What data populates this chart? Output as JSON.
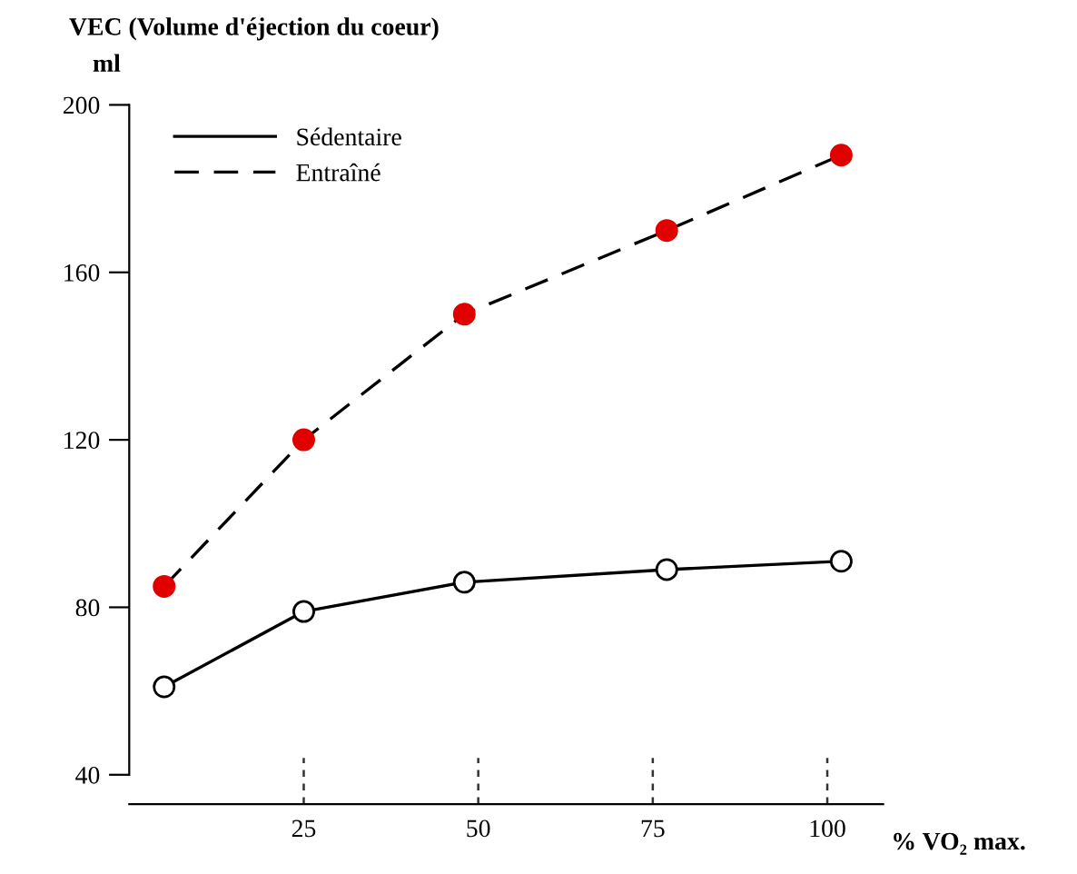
{
  "chart_data": {
    "type": "line",
    "title": "VEC (Volume d'éjection du coeur)",
    "ylabel": "ml",
    "xlabel": "% VO₂ max.",
    "x": [
      5,
      25,
      48,
      77,
      102
    ],
    "series": [
      {
        "name": "Sédentaire",
        "color": "#000000",
        "values": [
          61,
          79,
          86,
          89,
          91
        ],
        "line_style": "solid",
        "marker": "circle"
      },
      {
        "name": "Entraîné",
        "color": "#e00000",
        "values": [
          85,
          120,
          150,
          170,
          188
        ],
        "line_style": "dashed",
        "marker": "circle"
      }
    ],
    "xlim": [
      0,
      108
    ],
    "ylim": [
      33,
      200
    ],
    "xticks": [
      25,
      50,
      75,
      100
    ],
    "yticks": [
      40,
      80,
      120,
      160,
      200
    ],
    "grid": false,
    "legend": "top left"
  }
}
